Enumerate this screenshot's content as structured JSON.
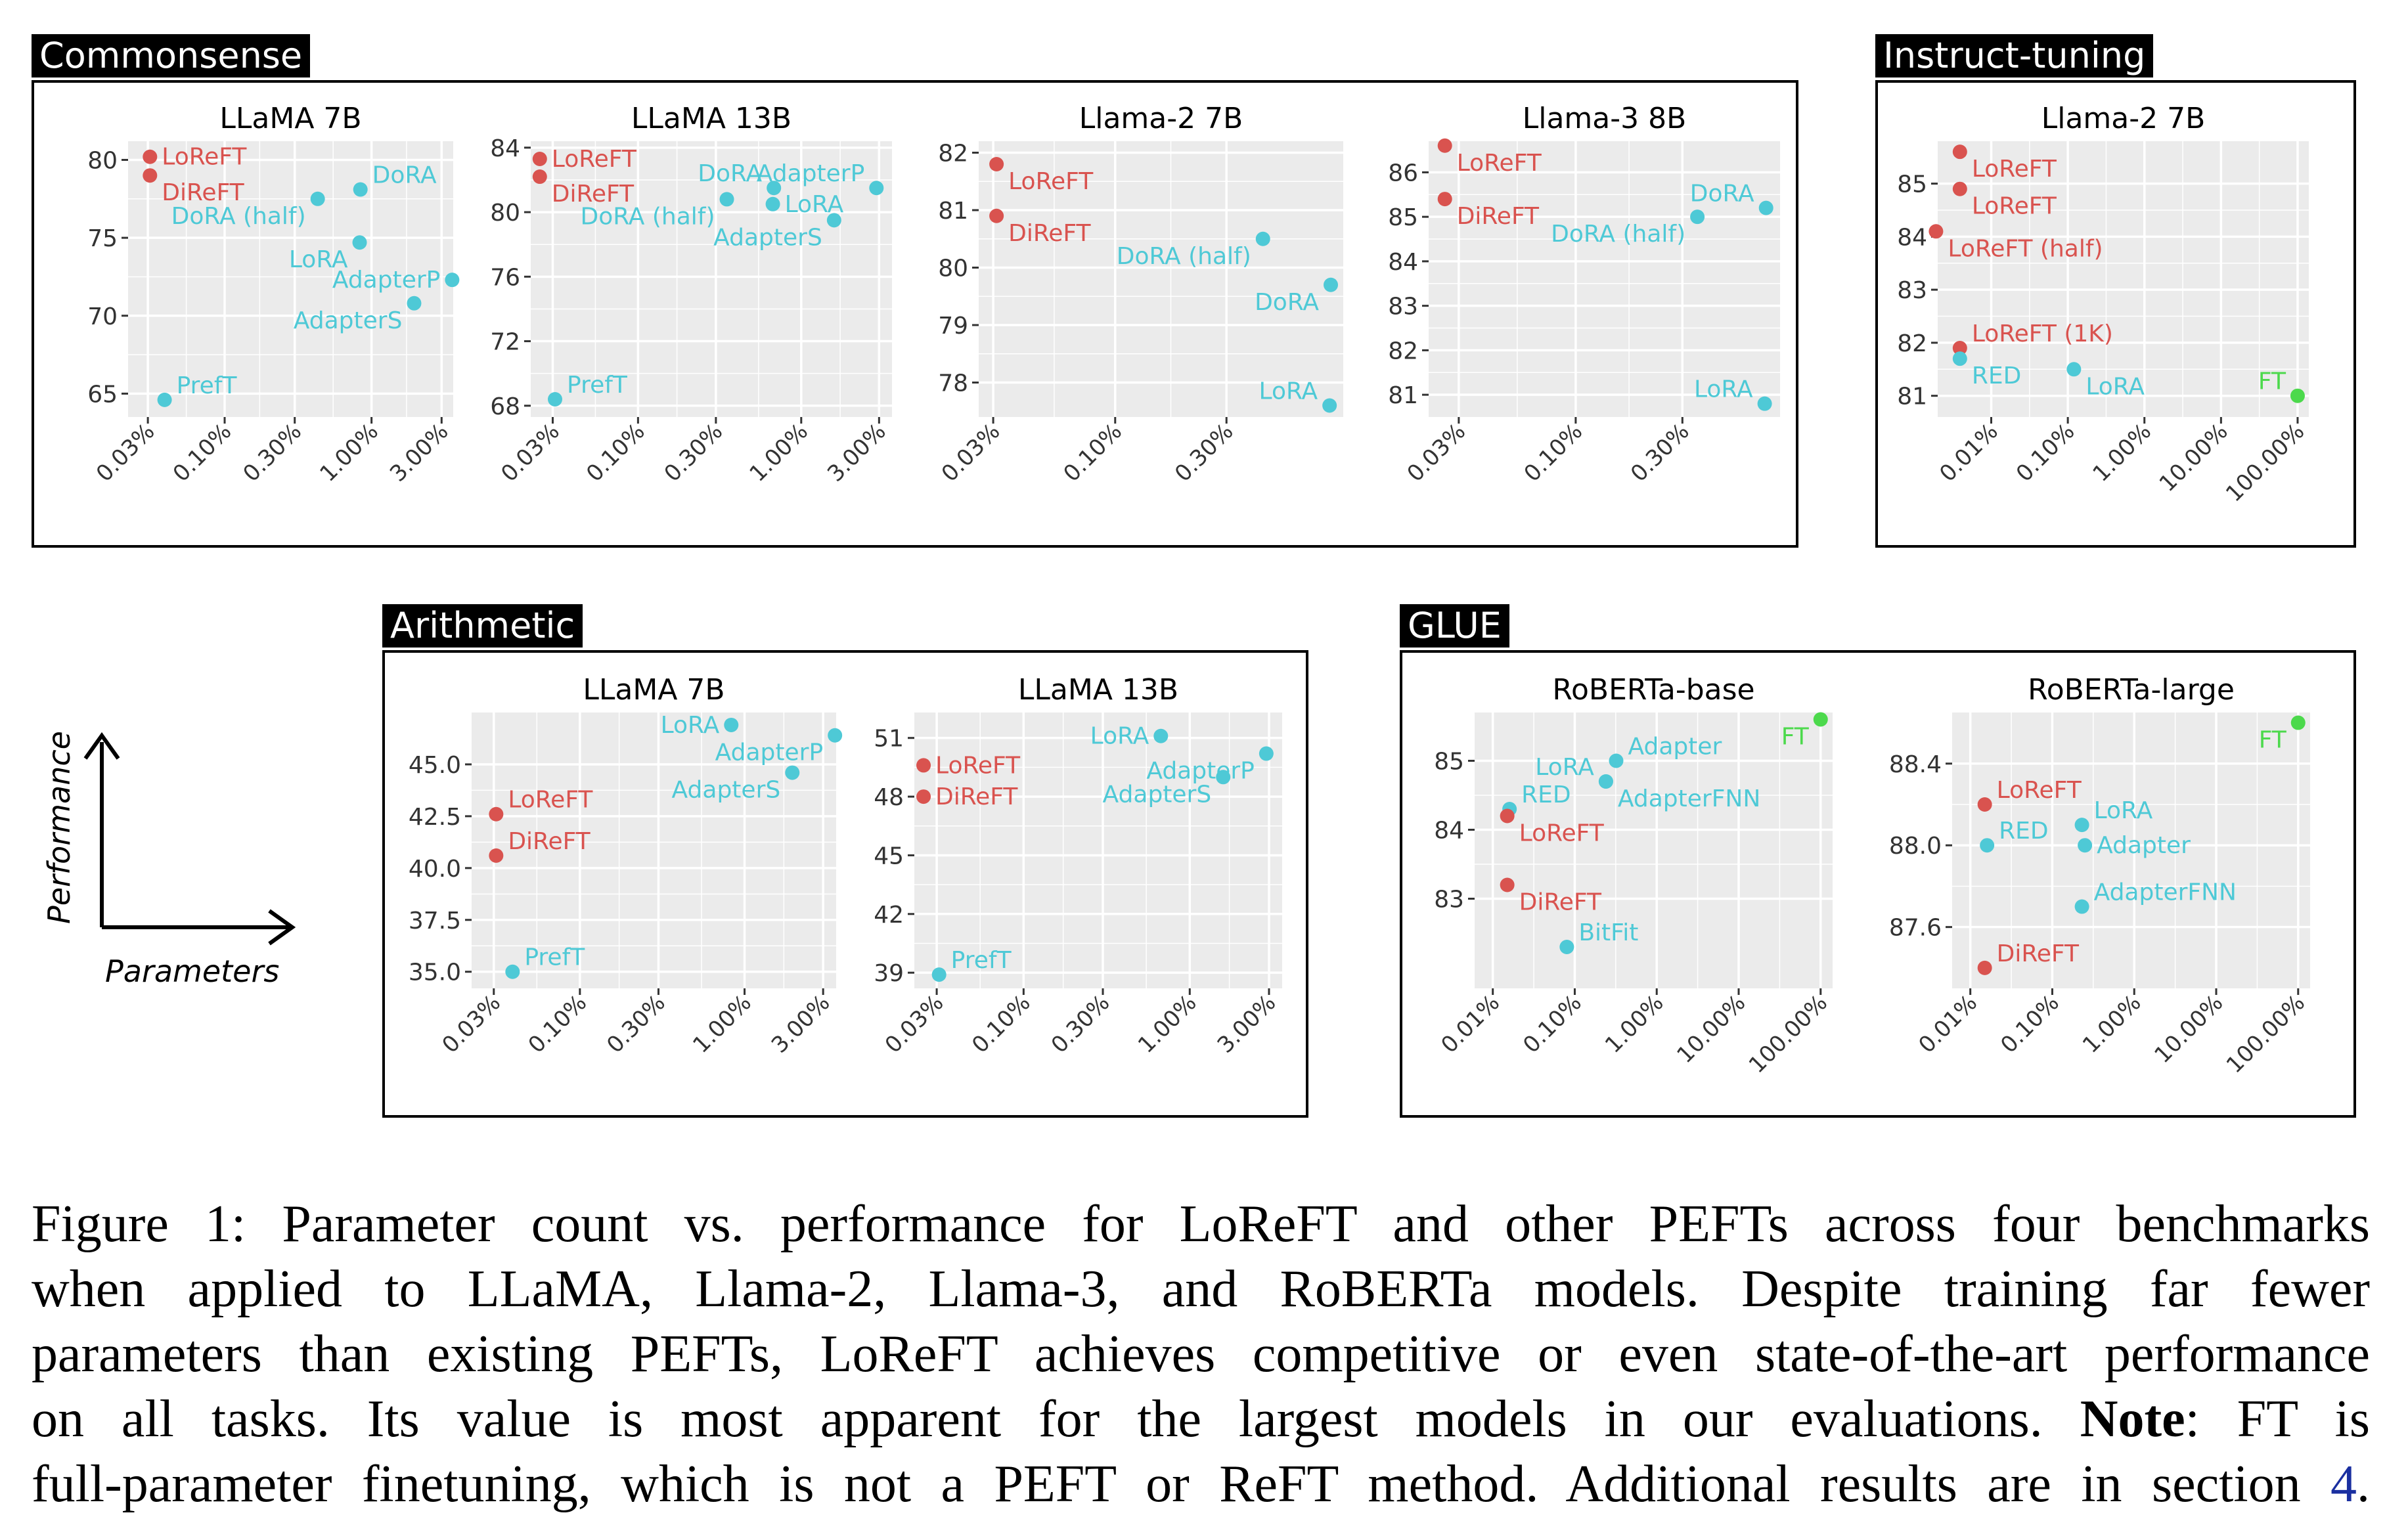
{
  "groups": {
    "commonsense": "Commonsense",
    "instruct": "Instruct-tuning",
    "arithmetic": "Arithmetic",
    "glue": "GLUE"
  },
  "legend": {
    "y": "Performance",
    "x": "Parameters"
  },
  "colors": {
    "loreft": "#d9534f",
    "peft": "#4ec9d6",
    "ft": "#4cd94c",
    "panel_bg": "#ebebeb",
    "grid": "#ffffff"
  },
  "caption": {
    "line1": "Figure 1: Parameter count vs. performance for LoReFT and other PEFTs across four benchmarks",
    "line2": "when applied to LLaMA, Llama-2, Llama-3, and RoBERTa models.  Despite training far fewer",
    "line3": "parameters than existing PEFTs, LoReFT achieves competitive or even state-of-the-art performance",
    "line4a": "on all tasks.  Its value is most apparent for the largest models in our evaluations.  ",
    "line4b": "Note",
    "line4c": ": FT is",
    "line5a": "full-parameter finetuning, which is not a PEFT or ReFT method. Additional results are in section ",
    "line5b": "4",
    "line5c": "."
  },
  "chart_data": [
    {
      "type": "scatter",
      "group": "Commonsense",
      "title": "LLaMA 7B",
      "xscale": "log",
      "xlim": [
        0.022,
        3.6
      ],
      "ylim": [
        63.5,
        81.2
      ],
      "xticks": [
        0.03,
        0.1,
        0.3,
        1.0,
        3.0
      ],
      "xtick_labels": [
        "0.03%",
        "0.10%",
        "0.30%",
        "1.00%",
        "3.00%"
      ],
      "yticks": [
        65,
        70,
        75,
        80
      ],
      "ytick_labels": [
        "65",
        "70",
        "75",
        "80"
      ],
      "points": [
        {
          "label": "LoReFT",
          "x": 0.031,
          "y": 80.2,
          "color": "loreft",
          "anchor": "right"
        },
        {
          "label": "DiReFT",
          "x": 0.031,
          "y": 79.0,
          "color": "loreft",
          "anchor": "right-below"
        },
        {
          "label": "DoRA (half)",
          "x": 0.43,
          "y": 77.5,
          "color": "peft",
          "anchor": "left-below"
        },
        {
          "label": "DoRA",
          "x": 0.84,
          "y": 78.1,
          "color": "peft",
          "anchor": "right-above"
        },
        {
          "label": "LoRA",
          "x": 0.83,
          "y": 74.7,
          "color": "peft",
          "anchor": "left-below"
        },
        {
          "label": "AdapterP",
          "x": 3.54,
          "y": 72.3,
          "color": "peft",
          "anchor": "left"
        },
        {
          "label": "AdapterS",
          "x": 1.95,
          "y": 70.8,
          "color": "peft",
          "anchor": "left-below"
        },
        {
          "label": "PrefT",
          "x": 0.039,
          "y": 64.6,
          "color": "peft",
          "anchor": "right-above"
        }
      ]
    },
    {
      "type": "scatter",
      "group": "Commonsense",
      "title": "LLaMA 13B",
      "xscale": "log",
      "xlim": [
        0.022,
        3.6
      ],
      "ylim": [
        67.3,
        84.4
      ],
      "xticks": [
        0.03,
        0.1,
        0.3,
        1.0,
        3.0
      ],
      "xtick_labels": [
        "0.03%",
        "0.10%",
        "0.30%",
        "1.00%",
        "3.00%"
      ],
      "yticks": [
        68,
        72,
        76,
        80,
        84
      ],
      "ytick_labels": [
        "68",
        "72",
        "76",
        "80",
        "84"
      ],
      "points": [
        {
          "label": "LoReFT",
          "x": 0.025,
          "y": 83.3,
          "color": "loreft",
          "anchor": "right"
        },
        {
          "label": "DiReFT",
          "x": 0.025,
          "y": 82.2,
          "color": "loreft",
          "anchor": "right-below"
        },
        {
          "label": "DoRA (half)",
          "x": 0.35,
          "y": 80.8,
          "color": "peft",
          "anchor": "left-below"
        },
        {
          "label": "DoRA",
          "x": 0.68,
          "y": 81.5,
          "color": "peft",
          "anchor": "left-above"
        },
        {
          "label": "LoRA",
          "x": 0.67,
          "y": 80.5,
          "color": "peft",
          "anchor": "right"
        },
        {
          "label": "AdapterP",
          "x": 2.89,
          "y": 81.5,
          "color": "peft",
          "anchor": "left-above"
        },
        {
          "label": "AdapterS",
          "x": 1.59,
          "y": 79.5,
          "color": "peft",
          "anchor": "left-below"
        },
        {
          "label": "PrefT",
          "x": 0.031,
          "y": 68.4,
          "color": "peft",
          "anchor": "right-above"
        }
      ]
    },
    {
      "type": "scatter",
      "group": "Commonsense",
      "title": "Llama-2 7B",
      "xscale": "log",
      "xlim": [
        0.026,
        0.95
      ],
      "ylim": [
        77.4,
        82.2
      ],
      "xticks": [
        0.03,
        0.1,
        0.3
      ],
      "xtick_labels": [
        "0.03%",
        "0.10%",
        "0.30%"
      ],
      "yticks": [
        78,
        79,
        80,
        81,
        82
      ],
      "ytick_labels": [
        "78",
        "79",
        "80",
        "81",
        "82"
      ],
      "points": [
        {
          "label": "LoReFT",
          "x": 0.031,
          "y": 81.8,
          "color": "loreft",
          "anchor": "right-below"
        },
        {
          "label": "DiReFT",
          "x": 0.031,
          "y": 80.9,
          "color": "loreft",
          "anchor": "right-below"
        },
        {
          "label": "DoRA (half)",
          "x": 0.43,
          "y": 80.5,
          "color": "peft",
          "anchor": "left-below"
        },
        {
          "label": "DoRA",
          "x": 0.84,
          "y": 79.7,
          "color": "peft",
          "anchor": "left-below"
        },
        {
          "label": "LoRA",
          "x": 0.83,
          "y": 77.6,
          "color": "peft",
          "anchor": "left-above"
        }
      ]
    },
    {
      "type": "scatter",
      "group": "Commonsense",
      "title": "Llama-3 8B",
      "xscale": "log",
      "xlim": [
        0.022,
        0.82
      ],
      "ylim": [
        80.5,
        86.7
      ],
      "xticks": [
        0.03,
        0.1,
        0.3
      ],
      "xtick_labels": [
        "0.03%",
        "0.10%",
        "0.30%"
      ],
      "yticks": [
        81,
        82,
        83,
        84,
        85,
        86
      ],
      "ytick_labels": [
        "81",
        "82",
        "83",
        "84",
        "85",
        "86"
      ],
      "points": [
        {
          "label": "LoReFT",
          "x": 0.026,
          "y": 86.6,
          "color": "loreft",
          "anchor": "right-below"
        },
        {
          "label": "DiReFT",
          "x": 0.026,
          "y": 85.4,
          "color": "loreft",
          "anchor": "right-below"
        },
        {
          "label": "DoRA (half)",
          "x": 0.35,
          "y": 85.0,
          "color": "peft",
          "anchor": "left-below"
        },
        {
          "label": "DoRA",
          "x": 0.71,
          "y": 85.2,
          "color": "peft",
          "anchor": "left-above"
        },
        {
          "label": "LoRA",
          "x": 0.7,
          "y": 80.8,
          "color": "peft",
          "anchor": "left-above"
        }
      ]
    },
    {
      "type": "scatter",
      "group": "Instruct-tuning",
      "title": "Llama-2 7B",
      "xscale": "log",
      "xlim": [
        0.002,
        140
      ],
      "ylim": [
        80.6,
        85.8
      ],
      "xticks": [
        0.01,
        0.1,
        1.0,
        10.0,
        100.0
      ],
      "xtick_labels": [
        "0.01%",
        "0.10%",
        "1.00%",
        "10.00%",
        "100.00%"
      ],
      "yticks": [
        81,
        82,
        83,
        84,
        85
      ],
      "ytick_labels": [
        "81",
        "82",
        "83",
        "84",
        "85"
      ],
      "points": [
        {
          "label": "LoReFT",
          "x": 0.0039,
          "y": 85.6,
          "color": "loreft",
          "anchor": "right-below"
        },
        {
          "label": "LoReFT",
          "x": 0.0039,
          "y": 84.9,
          "color": "loreft",
          "anchor": "right-below"
        },
        {
          "label": "LoReFT (half)",
          "x": 0.0019,
          "y": 84.1,
          "color": "loreft",
          "anchor": "right-below"
        },
        {
          "label": "LoReFT (1K)",
          "x": 0.0039,
          "y": 81.9,
          "color": "loreft",
          "anchor": "right-above"
        },
        {
          "label": "RED",
          "x": 0.0039,
          "y": 81.7,
          "color": "peft",
          "anchor": "right-below"
        },
        {
          "label": "LoRA",
          "x": 0.12,
          "y": 81.5,
          "color": "peft",
          "anchor": "right-below"
        },
        {
          "label": "FT",
          "x": 100.0,
          "y": 81.0,
          "color": "ft",
          "anchor": "left-above"
        }
      ]
    },
    {
      "type": "scatter",
      "group": "Arithmetic",
      "title": "LLaMA 7B",
      "xscale": "log",
      "xlim": [
        0.022,
        3.6
      ],
      "ylim": [
        34.2,
        47.5
      ],
      "xticks": [
        0.03,
        0.1,
        0.3,
        1.0,
        3.0
      ],
      "xtick_labels": [
        "0.03%",
        "0.10%",
        "0.30%",
        "1.00%",
        "3.00%"
      ],
      "yticks": [
        35.0,
        37.5,
        40.0,
        42.5,
        45.0
      ],
      "ytick_labels": [
        "35.0",
        "37.5",
        "40.0",
        "42.5",
        "45.0"
      ],
      "points": [
        {
          "label": "LoReFT",
          "x": 0.031,
          "y": 42.6,
          "color": "loreft",
          "anchor": "right-above"
        },
        {
          "label": "DiReFT",
          "x": 0.031,
          "y": 40.6,
          "color": "loreft",
          "anchor": "right-above"
        },
        {
          "label": "LoRA",
          "x": 0.83,
          "y": 46.9,
          "color": "peft",
          "anchor": "left"
        },
        {
          "label": "AdapterP",
          "x": 3.54,
          "y": 46.4,
          "color": "peft",
          "anchor": "left-below"
        },
        {
          "label": "AdapterS",
          "x": 1.95,
          "y": 44.6,
          "color": "peft",
          "anchor": "left-below"
        },
        {
          "label": "PrefT",
          "x": 0.039,
          "y": 35.0,
          "color": "peft",
          "anchor": "right-above"
        }
      ]
    },
    {
      "type": "scatter",
      "group": "Arithmetic",
      "title": "LLaMA 13B",
      "xscale": "log",
      "xlim": [
        0.022,
        3.6
      ],
      "ylim": [
        38.2,
        52.3
      ],
      "xticks": [
        0.03,
        0.1,
        0.3,
        1.0,
        3.0
      ],
      "xtick_labels": [
        "0.03%",
        "0.10%",
        "0.30%",
        "1.00%",
        "3.00%"
      ],
      "yticks": [
        39,
        42,
        45,
        48,
        51
      ],
      "ytick_labels": [
        "39",
        "42",
        "45",
        "48",
        "51"
      ],
      "points": [
        {
          "label": "LoReFT",
          "x": 0.025,
          "y": 49.6,
          "color": "loreft",
          "anchor": "right"
        },
        {
          "label": "DiReFT",
          "x": 0.025,
          "y": 48.0,
          "color": "loreft",
          "anchor": "right"
        },
        {
          "label": "LoRA",
          "x": 0.67,
          "y": 51.1,
          "color": "peft",
          "anchor": "left"
        },
        {
          "label": "AdapterP",
          "x": 2.89,
          "y": 50.2,
          "color": "peft",
          "anchor": "left-below"
        },
        {
          "label": "AdapterS",
          "x": 1.59,
          "y": 49.0,
          "color": "peft",
          "anchor": "left-below"
        },
        {
          "label": "PrefT",
          "x": 0.031,
          "y": 38.9,
          "color": "peft",
          "anchor": "right-above"
        }
      ]
    },
    {
      "type": "scatter",
      "group": "GLUE",
      "title": "RoBERTa-base",
      "xscale": "log",
      "xlim": [
        0.006,
        140
      ],
      "ylim": [
        81.7,
        85.7
      ],
      "xticks": [
        0.01,
        0.1,
        1.0,
        10.0,
        100.0
      ],
      "xtick_labels": [
        "0.01%",
        "0.10%",
        "1.00%",
        "10.00%",
        "100.00%"
      ],
      "yticks": [
        83,
        84,
        85
      ],
      "ytick_labels": [
        "83",
        "84",
        "85"
      ],
      "points": [
        {
          "label": "FT",
          "x": 100.0,
          "y": 85.6,
          "color": "ft",
          "anchor": "left-below"
        },
        {
          "label": "Adapter",
          "x": 0.32,
          "y": 85.0,
          "color": "peft",
          "anchor": "right-above"
        },
        {
          "label": "LoRA",
          "x": 0.24,
          "y": 84.7,
          "color": "peft",
          "anchor": "left-above"
        },
        {
          "label": "AdapterFNN",
          "x": 0.24,
          "y": 84.7,
          "color": "peft",
          "anchor": "right-below"
        },
        {
          "label": "RED",
          "x": 0.016,
          "y": 84.3,
          "color": "peft",
          "anchor": "right-above"
        },
        {
          "label": "LoReFT",
          "x": 0.015,
          "y": 84.2,
          "color": "loreft",
          "anchor": "right-below"
        },
        {
          "label": "DiReFT",
          "x": 0.015,
          "y": 83.2,
          "color": "loreft",
          "anchor": "right-below"
        },
        {
          "label": "BitFit",
          "x": 0.08,
          "y": 82.3,
          "color": "peft",
          "anchor": "right-above"
        }
      ]
    },
    {
      "type": "scatter",
      "group": "GLUE",
      "title": "RoBERTa-large",
      "xscale": "log",
      "xlim": [
        0.006,
        140
      ],
      "ylim": [
        87.3,
        88.65
      ],
      "xticks": [
        0.01,
        0.1,
        1.0,
        10.0,
        100.0
      ],
      "xtick_labels": [
        "0.01%",
        "0.10%",
        "1.00%",
        "10.00%",
        "100.00%"
      ],
      "yticks": [
        87.6,
        88.0,
        88.4
      ],
      "ytick_labels": [
        "87.6",
        "88.0",
        "88.4"
      ],
      "points": [
        {
          "label": "FT",
          "x": 100.0,
          "y": 88.6,
          "color": "ft",
          "anchor": "left-below"
        },
        {
          "label": "LoReFT",
          "x": 0.015,
          "y": 88.2,
          "color": "loreft",
          "anchor": "right-above"
        },
        {
          "label": "LoRA",
          "x": 0.23,
          "y": 88.1,
          "color": "peft",
          "anchor": "right-above"
        },
        {
          "label": "RED",
          "x": 0.016,
          "y": 88.0,
          "color": "peft",
          "anchor": "right-above"
        },
        {
          "label": "Adapter",
          "x": 0.25,
          "y": 88.0,
          "color": "peft",
          "anchor": "right"
        },
        {
          "label": "AdapterFNN",
          "x": 0.23,
          "y": 87.7,
          "color": "peft",
          "anchor": "right-above"
        },
        {
          "label": "DiReFT",
          "x": 0.015,
          "y": 87.4,
          "color": "loreft",
          "anchor": "right-above"
        }
      ]
    }
  ]
}
